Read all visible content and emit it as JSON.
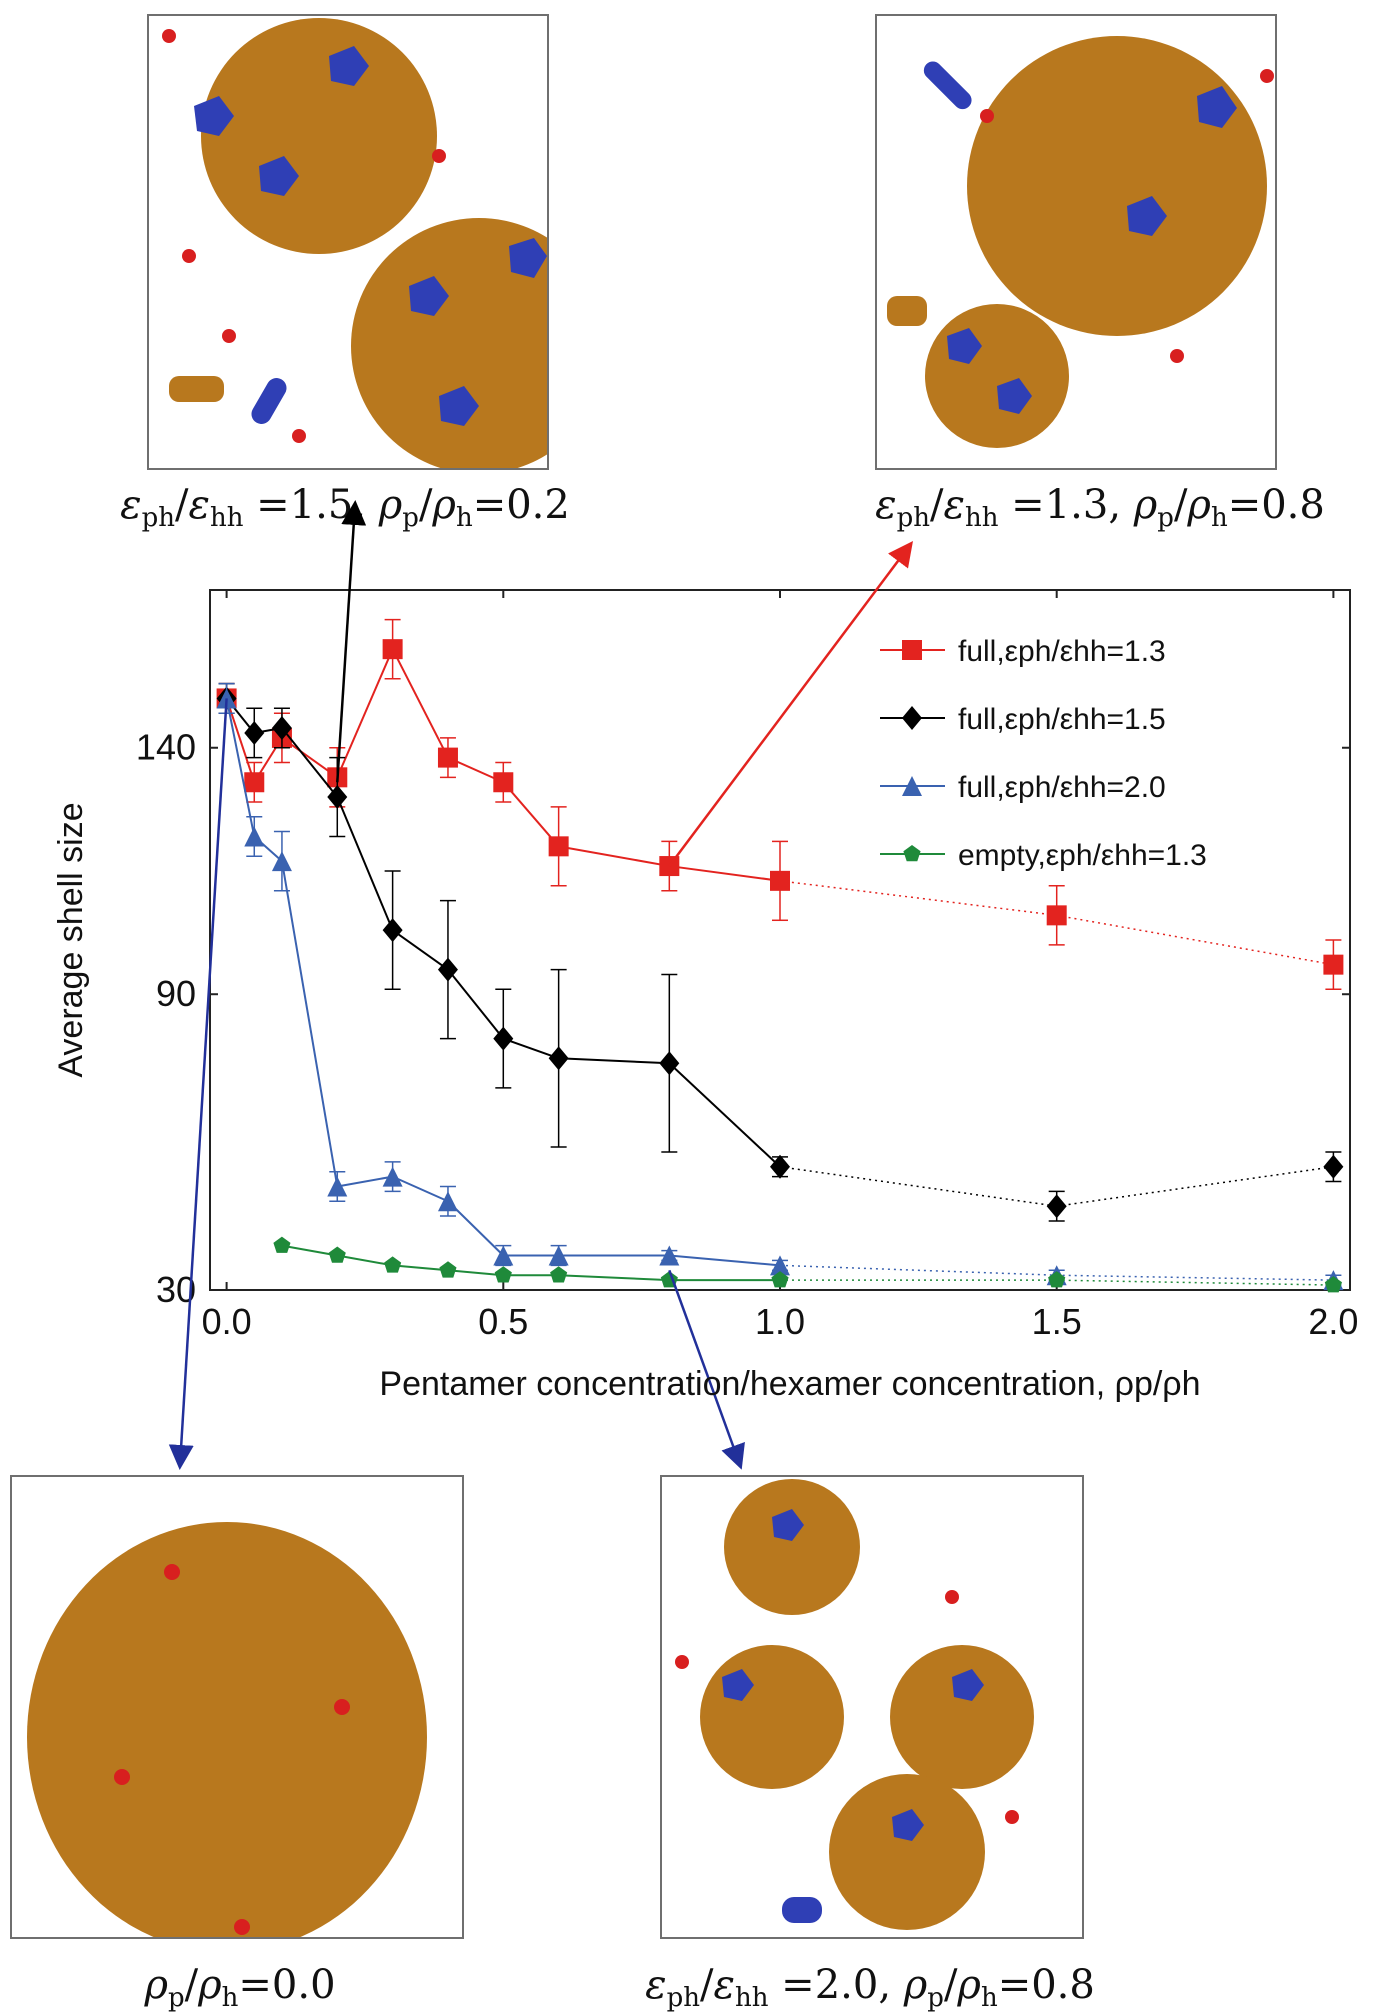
{
  "panels": [
    {
      "id": "tl",
      "ratio_e": "1.5",
      "ratio_rho": "0.2"
    },
    {
      "id": "tr",
      "ratio_e": "1.3",
      "ratio_rho": "0.8"
    },
    {
      "id": "bl",
      "ratio_rho": "0.0"
    },
    {
      "id": "br",
      "ratio_e": "2.0",
      "ratio_rho": "0.8"
    }
  ],
  "colors": {
    "shell": "#b8781e",
    "pentamer": "#2f3fb5",
    "free_particle": "#d81f1f",
    "series_red": "#e3231f",
    "series_black": "#000000",
    "series_blue": "#3a62b0",
    "series_green": "#1f8a3a",
    "arrow_black": "#000000",
    "arrow_red": "#e3231f",
    "arrow_blue": "#22309a"
  },
  "chart_data": {
    "type": "line",
    "xlabel": "Pentamer concentration/hexamer concentration, ρp/ρh",
    "ylabel": "Average shell size",
    "xlim": [
      -0.03,
      2.03
    ],
    "ylim": [
      30,
      172
    ],
    "xticks": [
      "0.0",
      "0.5",
      "1.0",
      "1.5",
      "2.0"
    ],
    "yticks": [
      "30",
      "90",
      "140"
    ],
    "legend_position": "top-right",
    "series": [
      {
        "name": "full,εph/εhh=1.3",
        "marker": "square",
        "color": "#e3231f",
        "x": [
          0.0,
          0.05,
          0.1,
          0.2,
          0.3,
          0.4,
          0.5,
          0.6,
          0.8,
          1.0,
          1.5,
          2.0
        ],
        "y": [
          150,
          133,
          142,
          134,
          160,
          138,
          133,
          120,
          116,
          113,
          106,
          96
        ],
        "err": [
          3,
          4,
          5,
          6,
          6,
          4,
          4,
          8,
          5,
          8,
          6,
          5
        ],
        "dotted_after": 1.0
      },
      {
        "name": "full,εph/εhh=1.5",
        "marker": "diamond",
        "color": "#000000",
        "x": [
          0.0,
          0.05,
          0.1,
          0.2,
          0.3,
          0.4,
          0.5,
          0.6,
          0.8,
          1.0,
          1.5,
          2.0
        ],
        "y": [
          150,
          143,
          144,
          130,
          103,
          95,
          81,
          77,
          76,
          55,
          47,
          55
        ],
        "err": [
          3,
          5,
          4,
          8,
          12,
          14,
          10,
          18,
          18,
          2,
          3,
          3
        ],
        "dotted_after": 1.0
      },
      {
        "name": "full,εph/εhh=2.0",
        "marker": "triangle",
        "color": "#3a62b0",
        "x": [
          0.0,
          0.05,
          0.1,
          0.2,
          0.3,
          0.4,
          0.5,
          0.6,
          0.8,
          1.0,
          1.5,
          2.0
        ],
        "y": [
          150,
          122,
          117,
          51,
          53,
          48,
          37,
          37,
          37,
          35,
          33,
          32
        ],
        "err": [
          3,
          4,
          6,
          3,
          3,
          3,
          2,
          2,
          1,
          1,
          1,
          1
        ],
        "dotted_after": 1.0
      },
      {
        "name": "empty,εph/εhh=1.3",
        "marker": "pentagon",
        "color": "#1f8a3a",
        "x": [
          0.1,
          0.2,
          0.3,
          0.4,
          0.5,
          0.6,
          0.8,
          1.0,
          1.5,
          2.0
        ],
        "y": [
          39,
          37,
          35,
          34,
          33,
          33,
          32,
          32,
          32,
          31
        ],
        "err": [
          0,
          0,
          0,
          0,
          0,
          0,
          0,
          0,
          0,
          0
        ],
        "dotted_after": 1.0
      }
    ],
    "annotations": [
      {
        "from": [
          0.2,
          133
        ],
        "to_panel": "tl",
        "color": "black"
      },
      {
        "from": [
          0.8,
          116
        ],
        "to_panel": "tr",
        "color": "red"
      },
      {
        "from": [
          0.0,
          150
        ],
        "to_panel": "bl",
        "color": "blue"
      },
      {
        "from": [
          0.8,
          34
        ],
        "to_panel": "br",
        "color": "blue"
      }
    ]
  }
}
